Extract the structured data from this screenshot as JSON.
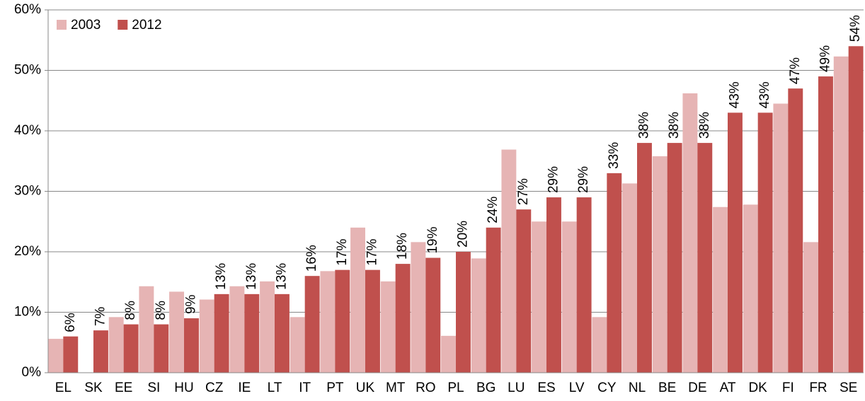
{
  "chart_data": {
    "type": "bar",
    "categories": [
      "EL",
      "SK",
      "EE",
      "SI",
      "HU",
      "CZ",
      "IE",
      "LT",
      "IT",
      "PT",
      "UK",
      "MT",
      "RO",
      "PL",
      "BG",
      "LU",
      "ES",
      "LV",
      "CY",
      "NL",
      "BE",
      "DE",
      "AT",
      "DK",
      "FI",
      "FR",
      "SE"
    ],
    "series": [
      {
        "name": "2003",
        "color": "#e6b4b4",
        "values": [
          5.6,
          null,
          9.2,
          14.3,
          13.4,
          12.1,
          14.3,
          15.1,
          9.2,
          16.8,
          24,
          15.1,
          21.6,
          6.1,
          18.9,
          36.9,
          25,
          25,
          9.2,
          31.3,
          35.8,
          46.2,
          27.4,
          27.8,
          44.5,
          21.6,
          52.3
        ]
      },
      {
        "name": "2012",
        "color": "#c0504d",
        "values": [
          6,
          7,
          8,
          8,
          9,
          13,
          13,
          13,
          16,
          17,
          17,
          18,
          19,
          20,
          24,
          27,
          29,
          29,
          33,
          38,
          38,
          38,
          43,
          43,
          47,
          49,
          54
        ],
        "value_labels": [
          "6%",
          "7%",
          "8%",
          "8%",
          "9%",
          "13%",
          "13%",
          "13%",
          "16%",
          "17%",
          "17%",
          "18%",
          "19%",
          "20%",
          "24%",
          "27%",
          "29%",
          "29%",
          "33%",
          "38%",
          "38%",
          "38%",
          "43%",
          "43%",
          "47%",
          "49%",
          "54%"
        ]
      }
    ],
    "ylim": [
      0,
      60
    ],
    "yticks": [
      {
        "value": 0,
        "label": "0%"
      },
      {
        "value": 10,
        "label": "10%"
      },
      {
        "value": 20,
        "label": "20%"
      },
      {
        "value": 30,
        "label": "30%"
      },
      {
        "value": 40,
        "label": "40%"
      },
      {
        "value": 50,
        "label": "50%"
      },
      {
        "value": 60,
        "label": "60%"
      }
    ],
    "grid": true,
    "legend": "upper-left"
  }
}
